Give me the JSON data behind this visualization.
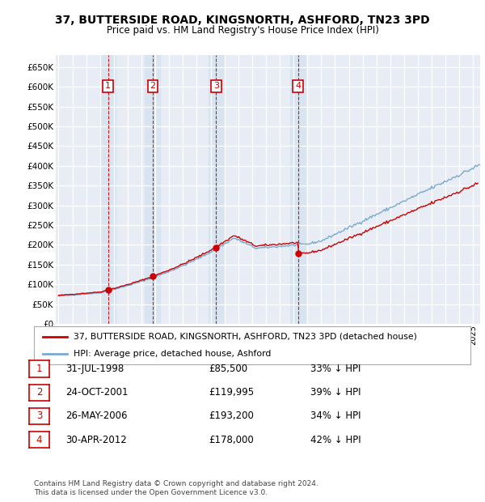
{
  "title": "37, BUTTERSIDE ROAD, KINGSNORTH, ASHFORD, TN23 3PD",
  "subtitle": "Price paid vs. HM Land Registry's House Price Index (HPI)",
  "ylabel_values": [
    0,
    50000,
    100000,
    150000,
    200000,
    250000,
    300000,
    350000,
    400000,
    450000,
    500000,
    550000,
    600000,
    650000
  ],
  "ylim": [
    0,
    680000
  ],
  "xlim_start": 1994.8,
  "xlim_end": 2025.5,
  "sale_dates": [
    1998.58,
    2001.81,
    2006.4,
    2012.33
  ],
  "sale_prices": [
    85500,
    119995,
    193200,
    178000
  ],
  "sale_labels": [
    "1",
    "2",
    "3",
    "4"
  ],
  "legend_property_label": "37, BUTTERSIDE ROAD, KINGSNORTH, ASHFORD, TN23 3PD (detached house)",
  "legend_hpi_label": "HPI: Average price, detached house, Ashford",
  "table_rows": [
    [
      "1",
      "31-JUL-1998",
      "£85,500",
      "33% ↓ HPI"
    ],
    [
      "2",
      "24-OCT-2001",
      "£119,995",
      "39% ↓ HPI"
    ],
    [
      "3",
      "26-MAY-2006",
      "£193,200",
      "34% ↓ HPI"
    ],
    [
      "4",
      "30-APR-2012",
      "£178,000",
      "42% ↓ HPI"
    ]
  ],
  "footer": "Contains HM Land Registry data © Crown copyright and database right 2024.\nThis data is licensed under the Open Government Licence v3.0.",
  "property_color": "#cc0000",
  "hpi_color": "#7aaad0",
  "vline_color": "#cc0000",
  "bg_plot": "#e8edf5",
  "grid_color": "#ffffff",
  "sale_box_color": "#cc0000",
  "highlight_bg": "#d8e4f0"
}
